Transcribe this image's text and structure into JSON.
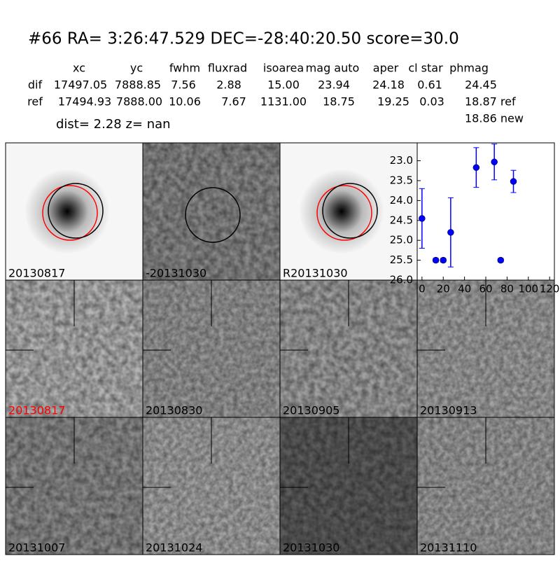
{
  "header": {
    "title": "#66   RA= 3:26:47.529 DEC=-28:40:20.50      score=30.0"
  },
  "table": {
    "columns": [
      "xc",
      "yc",
      "fwhm",
      "fluxrad",
      "isoarea",
      "mag auto",
      "aper",
      "cl star",
      "phmag"
    ],
    "rows": [
      [
        "dif",
        "17497.05",
        "7888.85",
        "7.56",
        "2.88",
        "15.00",
        "23.94",
        "24.18",
        "0.61",
        "24.45"
      ],
      [
        "ref",
        "17494.93",
        "7888.00",
        "10.06",
        "7.67",
        "1131.00",
        "18.75",
        "19.25",
        "0.03",
        "18.87 ref"
      ]
    ],
    "extra": "18.86 new",
    "summary": "dist=  2.28      z=   nan"
  },
  "panels": [
    {
      "label": "20130817"
    },
    {
      "label": "-20131030"
    },
    {
      "label": "R20131030"
    },
    {
      "label": "20130817"
    },
    {
      "label": "20130830"
    },
    {
      "label": "20130905"
    },
    {
      "label": "20130913"
    },
    {
      "label": "20131007"
    },
    {
      "label": "20131024"
    },
    {
      "label": "20131030"
    },
    {
      "label": "20131110"
    }
  ],
  "chart_data": {
    "type": "scatter",
    "x": [
      0,
      13,
      20,
      27,
      51,
      68,
      74,
      86
    ],
    "series": [
      {
        "color": "#0000ff",
        "values": [
          24.45,
          25.5,
          25.5,
          24.8,
          23.17,
          23.03,
          25.5,
          23.52
        ],
        "errors": [
          0.75,
          0.05,
          0.05,
          0.87,
          0.5,
          0.45,
          0.05,
          0.28
        ]
      }
    ],
    "xlim": [
      -4.5,
      124.5
    ],
    "ylim": [
      26.0,
      22.55
    ],
    "xticks": [
      0,
      20,
      40,
      60,
      80,
      100,
      120
    ],
    "yticks": [
      {
        "value": 23.0,
        "label": "23.0"
      },
      {
        "value": 23.5,
        "label": "23.5"
      },
      {
        "value": 24.0,
        "label": "24.0"
      },
      {
        "value": 24.5,
        "label": "24.5"
      },
      {
        "value": 25.0,
        "label": "25.0"
      },
      {
        "value": 25.5,
        "label": "25.5"
      },
      {
        "value": 26.0,
        "label": "26.0"
      }
    ]
  }
}
